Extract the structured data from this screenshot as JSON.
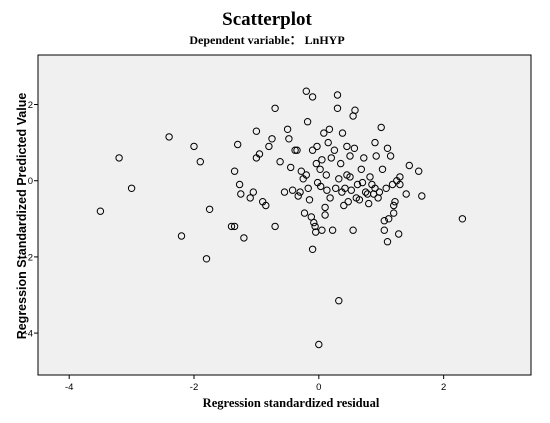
{
  "chart_data": {
    "type": "scatter",
    "title": "Scatterplot",
    "subtitle": "Dependent variable： LnHYP",
    "xlabel": "Regression standardized residual",
    "ylabel": "Regression Standardized Predicted Value",
    "xlim": [
      -4.5,
      3.4
    ],
    "ylim": [
      -5.1,
      3.3
    ],
    "xticks": [
      "-4",
      "-2",
      "0",
      "2"
    ],
    "xtick_values": [
      -4,
      -2,
      0,
      2
    ],
    "yticks": [
      "2",
      "0",
      "-2",
      "-4"
    ],
    "ytick_values": [
      2,
      0,
      -2,
      -4
    ],
    "grid": false,
    "plot_background": "#f0f0f0",
    "marker": "open-circle",
    "points": [
      [
        -3.5,
        -0.8
      ],
      [
        -3.2,
        0.6
      ],
      [
        -3.0,
        -0.2
      ],
      [
        -2.4,
        1.15
      ],
      [
        -2.2,
        -1.45
      ],
      [
        -2.0,
        0.9
      ],
      [
        -1.9,
        0.5
      ],
      [
        -1.8,
        -2.05
      ],
      [
        -1.75,
        -0.75
      ],
      [
        -1.4,
        -1.2
      ],
      [
        -1.35,
        -1.2
      ],
      [
        -1.35,
        0.25
      ],
      [
        -1.3,
        0.95
      ],
      [
        -1.27,
        -0.1
      ],
      [
        -1.25,
        -0.35
      ],
      [
        -1.2,
        -1.5
      ],
      [
        -1.1,
        -0.45
      ],
      [
        -1.05,
        -0.3
      ],
      [
        -1.0,
        1.3
      ],
      [
        -1.0,
        0.6
      ],
      [
        -0.95,
        0.7
      ],
      [
        -0.9,
        -0.55
      ],
      [
        -0.85,
        -0.65
      ],
      [
        -0.8,
        0.9
      ],
      [
        -0.75,
        1.1
      ],
      [
        -0.7,
        1.9
      ],
      [
        -0.7,
        -1.2
      ],
      [
        -0.62,
        0.5
      ],
      [
        -0.55,
        -0.3
      ],
      [
        -0.5,
        1.35
      ],
      [
        -0.48,
        1.1
      ],
      [
        -0.45,
        0.35
      ],
      [
        -0.42,
        -0.25
      ],
      [
        -0.38,
        0.8
      ],
      [
        -0.35,
        0.8
      ],
      [
        -0.33,
        -0.4
      ],
      [
        -0.3,
        -0.3
      ],
      [
        -0.28,
        0.25
      ],
      [
        -0.25,
        0.05
      ],
      [
        -0.23,
        -0.85
      ],
      [
        -0.2,
        2.35
      ],
      [
        -0.2,
        0.15
      ],
      [
        -0.18,
        1.55
      ],
      [
        -0.17,
        -0.2
      ],
      [
        -0.15,
        -0.5
      ],
      [
        -0.12,
        -0.95
      ],
      [
        -0.1,
        2.2
      ],
      [
        -0.1,
        0.8
      ],
      [
        -0.1,
        -1.8
      ],
      [
        -0.08,
        -1.1
      ],
      [
        -0.06,
        -1.2
      ],
      [
        -0.05,
        -1.35
      ],
      [
        -0.04,
        0.45
      ],
      [
        -0.03,
        0.9
      ],
      [
        -0.02,
        -0.05
      ],
      [
        0.0,
        -4.3
      ],
      [
        0.02,
        0.3
      ],
      [
        0.03,
        -0.15
      ],
      [
        0.05,
        0.55
      ],
      [
        0.05,
        -1.3
      ],
      [
        0.08,
        1.25
      ],
      [
        0.1,
        -0.7
      ],
      [
        0.1,
        -0.9
      ],
      [
        0.12,
        0.15
      ],
      [
        0.13,
        -0.25
      ],
      [
        0.15,
        1.0
      ],
      [
        0.17,
        1.35
      ],
      [
        0.18,
        -0.45
      ],
      [
        0.2,
        0.6
      ],
      [
        0.22,
        -1.3
      ],
      [
        0.25,
        0.8
      ],
      [
        0.27,
        -0.2
      ],
      [
        0.3,
        1.9
      ],
      [
        0.3,
        2.25
      ],
      [
        0.32,
        0.05
      ],
      [
        0.32,
        -3.15
      ],
      [
        0.35,
        0.45
      ],
      [
        0.37,
        -0.3
      ],
      [
        0.38,
        1.25
      ],
      [
        0.4,
        -0.65
      ],
      [
        0.42,
        -0.2
      ],
      [
        0.45,
        0.9
      ],
      [
        0.45,
        0.15
      ],
      [
        0.47,
        -0.55
      ],
      [
        0.5,
        0.65
      ],
      [
        0.5,
        0.1
      ],
      [
        0.52,
        -0.25
      ],
      [
        0.55,
        1.7
      ],
      [
        0.55,
        -1.3
      ],
      [
        0.57,
        0.85
      ],
      [
        0.58,
        1.85
      ],
      [
        0.6,
        -0.45
      ],
      [
        0.62,
        -0.1
      ],
      [
        0.65,
        -0.5
      ],
      [
        0.68,
        0.3
      ],
      [
        0.7,
        -0.05
      ],
      [
        0.72,
        0.6
      ],
      [
        0.75,
        -0.3
      ],
      [
        0.78,
        -0.35
      ],
      [
        0.8,
        -0.6
      ],
      [
        0.82,
        0.1
      ],
      [
        0.85,
        -0.1
      ],
      [
        0.88,
        -0.35
      ],
      [
        0.9,
        1.0
      ],
      [
        0.9,
        -0.2
      ],
      [
        0.92,
        0.65
      ],
      [
        0.95,
        -0.45
      ],
      [
        0.97,
        -0.3
      ],
      [
        1.0,
        1.4
      ],
      [
        1.02,
        0.3
      ],
      [
        1.05,
        -1.05
      ],
      [
        1.05,
        -1.3
      ],
      [
        1.08,
        -0.2
      ],
      [
        1.1,
        0.85
      ],
      [
        1.1,
        -1.6
      ],
      [
        1.12,
        -1.0
      ],
      [
        1.15,
        0.65
      ],
      [
        1.18,
        -0.1
      ],
      [
        1.2,
        -0.65
      ],
      [
        1.2,
        -0.85
      ],
      [
        1.22,
        -0.55
      ],
      [
        1.25,
        0.0
      ],
      [
        1.28,
        -1.4
      ],
      [
        1.3,
        0.1
      ],
      [
        1.3,
        -0.1
      ],
      [
        1.4,
        -0.35
      ],
      [
        1.45,
        0.4
      ],
      [
        1.6,
        0.25
      ],
      [
        1.65,
        -0.4
      ],
      [
        2.3,
        -1.0
      ]
    ]
  }
}
